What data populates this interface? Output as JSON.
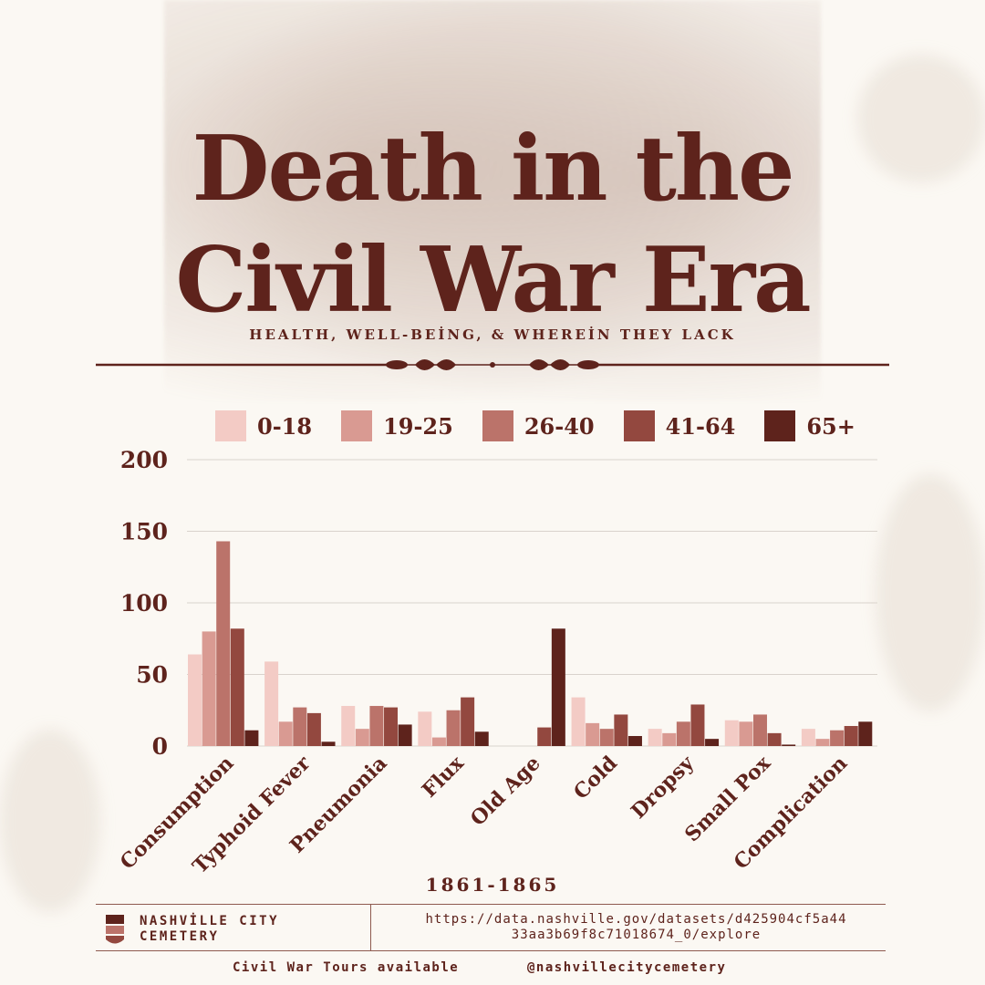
{
  "header": {
    "title_line1": "Death in the",
    "title_line2": "Civil War Era",
    "subtitle": "HEALTH, WELL-BEİNG, & WHEREİN THEY LACK"
  },
  "colors": {
    "accent": "#5e231c",
    "series": [
      "#f3cbc5",
      "#d99a92",
      "#bb736a",
      "#93483f",
      "#5e231c"
    ]
  },
  "chart_data": {
    "type": "bar",
    "categories": [
      "Consumption",
      "Typhoid Fever",
      "Pneumonia",
      "Flux",
      "Old Age",
      "Cold",
      "Dropsy",
      "Small Pox",
      "Complication"
    ],
    "series": [
      {
        "name": "0-18",
        "values": [
          64,
          59,
          28,
          24,
          0,
          34,
          12,
          18,
          12
        ]
      },
      {
        "name": "19-25",
        "values": [
          80,
          17,
          12,
          6,
          0,
          16,
          9,
          17,
          5
        ]
      },
      {
        "name": "26-40",
        "values": [
          143,
          27,
          28,
          25,
          0,
          12,
          17,
          22,
          11
        ]
      },
      {
        "name": "41-64",
        "values": [
          82,
          23,
          27,
          34,
          13,
          22,
          29,
          9,
          14
        ]
      },
      {
        "name": "65+",
        "values": [
          11,
          3,
          15,
          10,
          82,
          7,
          5,
          1,
          17
        ]
      }
    ],
    "ylim": [
      0,
      200
    ],
    "yticks": [
      "0",
      "50",
      "100",
      "150",
      "200"
    ],
    "grid": true,
    "legend_position": "top",
    "xlabel": "1861-1865"
  },
  "footer": {
    "org_line1": "NASHVİLLE CITY",
    "org_line2": "CEMETERY",
    "url_line1": "https://data.nashville.gov/datasets/d425904cf5a44",
    "url_line2": "33aa3b69f8c71018674_0/explore",
    "tours": "Civil War Tours available",
    "handle": "@nashvillecitycemetery"
  }
}
